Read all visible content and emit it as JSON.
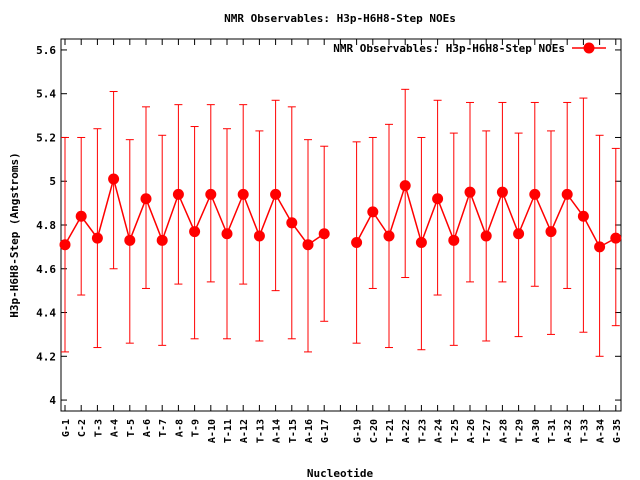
{
  "chart_data": {
    "type": "line",
    "title": "NMR Observables: H3p-H6H8-Step NOEs",
    "xlabel": "Nucleotide",
    "ylabel": "H3p-H6H8-Step (Angstroms)",
    "ylim": [
      3.95,
      5.65
    ],
    "yticks": [
      4,
      4.2,
      4.4,
      4.6,
      4.8,
      5,
      5.2,
      5.4,
      5.6
    ],
    "ytick_labels": [
      "4",
      "4.2",
      "4.4",
      "4.6",
      "4.8",
      "5",
      "5.2",
      "5.4",
      "5.6"
    ],
    "grid": false,
    "legend_position": "top-right",
    "color": "#ff0000",
    "categories": [
      "G-1",
      "C-2",
      "T-3",
      "A-4",
      "T-5",
      "A-6",
      "T-7",
      "A-8",
      "T-9",
      "A-10",
      "T-11",
      "A-12",
      "T-13",
      "A-14",
      "T-15",
      "A-16",
      "G-17",
      "",
      "G-19",
      "C-20",
      "T-21",
      "A-22",
      "T-23",
      "A-24",
      "T-25",
      "A-26",
      "T-27",
      "A-28",
      "T-29",
      "A-30",
      "T-31",
      "A-32",
      "T-33",
      "A-34",
      "G-35"
    ],
    "series": [
      {
        "name": "NMR Observables: H3p-H6H8-Step NOEs",
        "values": [
          4.71,
          4.84,
          4.74,
          5.01,
          4.73,
          4.92,
          4.73,
          4.94,
          4.77,
          4.94,
          4.76,
          4.94,
          4.75,
          4.94,
          4.81,
          4.71,
          4.76,
          null,
          4.72,
          4.86,
          4.75,
          4.98,
          4.72,
          4.92,
          4.73,
          4.95,
          4.75,
          4.95,
          4.76,
          4.94,
          4.77,
          4.94,
          4.84,
          4.7,
          4.74
        ],
        "err_low": [
          4.22,
          4.48,
          4.24,
          4.6,
          4.26,
          4.51,
          4.25,
          4.53,
          4.28,
          4.54,
          4.28,
          4.53,
          4.27,
          4.5,
          4.28,
          4.22,
          4.36,
          null,
          4.26,
          4.51,
          4.24,
          4.56,
          4.23,
          4.48,
          4.25,
          4.54,
          4.27,
          4.54,
          4.29,
          4.52,
          4.3,
          4.51,
          4.31,
          4.2,
          4.34
        ],
        "err_high": [
          5.2,
          5.2,
          5.24,
          5.41,
          5.19,
          5.34,
          5.21,
          5.35,
          5.25,
          5.35,
          5.24,
          5.35,
          5.23,
          5.37,
          5.34,
          5.19,
          5.16,
          null,
          5.18,
          5.2,
          5.26,
          5.42,
          5.2,
          5.37,
          5.22,
          5.36,
          5.23,
          5.36,
          5.22,
          5.36,
          5.23,
          5.36,
          5.38,
          5.21,
          5.15
        ]
      }
    ]
  }
}
